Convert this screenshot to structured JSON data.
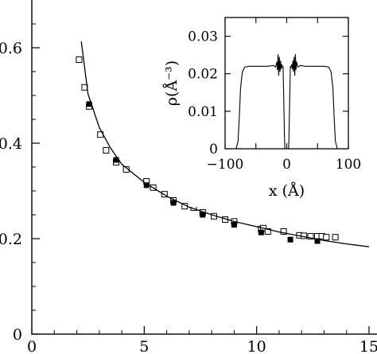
{
  "chart_data": [
    {
      "type": "scatter",
      "title": "",
      "xlabel": "",
      "ylabel": "",
      "xlim": [
        0,
        15
      ],
      "ylim": [
        0,
        0.7
      ],
      "x_ticks": [
        {
          "value": 0,
          "label": "0"
        },
        {
          "value": 5,
          "label": "5"
        },
        {
          "value": 10,
          "label": "10"
        },
        {
          "value": 15,
          "label": "15"
        }
      ],
      "y_ticks": [
        {
          "value": 0,
          "label": "0"
        },
        {
          "value": 0.2,
          "label": "0.2"
        },
        {
          "value": 0.4,
          "label": "0.4"
        },
        {
          "value": 0.6,
          "label": "0.6"
        }
      ],
      "series": [
        {
          "marker": "open-square",
          "x": [
            2.1,
            2.35,
            2.55,
            3.05,
            3.3,
            3.75,
            4.2,
            5.1,
            5.4,
            5.9,
            6.3,
            6.8,
            7.2,
            7.6,
            8.1,
            8.6,
            9.0,
            10.2,
            10.3,
            10.5,
            11.2,
            11.9,
            12.1,
            12.4,
            12.7,
            12.9,
            13.1,
            13.5
          ],
          "y": [
            0.575,
            0.517,
            0.477,
            0.418,
            0.385,
            0.36,
            0.345,
            0.32,
            0.307,
            0.293,
            0.28,
            0.268,
            0.265,
            0.255,
            0.247,
            0.24,
            0.236,
            0.22,
            0.222,
            0.215,
            0.215,
            0.207,
            0.206,
            0.205,
            0.205,
            0.205,
            0.203,
            0.203
          ]
        },
        {
          "marker": "filled-square",
          "x": [
            2.55,
            3.75,
            5.1,
            6.3,
            7.6,
            9.0,
            10.2,
            11.5,
            12.7
          ],
          "y": [
            0.482,
            0.365,
            0.312,
            0.275,
            0.25,
            0.229,
            0.213,
            0.198,
            0.195
          ]
        },
        {
          "marker": "line",
          "x": [
            2.2,
            2.5,
            3.0,
            3.5,
            4.0,
            5.0,
            6.0,
            7.0,
            8.0,
            9.0,
            10.0,
            11.0,
            12.0,
            13.0,
            14.0,
            15.0
          ],
          "y": [
            0.613,
            0.503,
            0.433,
            0.39,
            0.356,
            0.318,
            0.289,
            0.266,
            0.25,
            0.236,
            0.225,
            0.214,
            0.205,
            0.196,
            0.189,
            0.183
          ]
        }
      ]
    },
    {
      "type": "line",
      "title": "",
      "xlabel": "x (Å)",
      "ylabel": "ρ(Å⁻³)",
      "xlim": [
        -100,
        100
      ],
      "ylim": [
        0,
        0.035
      ],
      "x_ticks": [
        {
          "value": -100,
          "label": "−100"
        },
        {
          "value": -50,
          "label": ""
        },
        {
          "value": 0,
          "label": "0"
        },
        {
          "value": 50,
          "label": ""
        },
        {
          "value": 100,
          "label": "100"
        }
      ],
      "y_ticks": [
        {
          "value": 0,
          "label": "0"
        },
        {
          "value": 0.01,
          "label": "0.01"
        },
        {
          "value": 0.02,
          "label": "0.02"
        },
        {
          "value": 0.03,
          "label": "0.03"
        }
      ],
      "series": [
        {
          "x": [
            -90,
            -82,
            -79,
            -77,
            -75,
            -72,
            -68,
            -60,
            -30,
            -22,
            -18,
            -16,
            -15,
            -14,
            -13,
            -12,
            -11,
            -10,
            -9,
            -8,
            -7,
            -6,
            -5,
            -4,
            -3.5,
            -3,
            -2.6,
            2.6,
            3,
            3.5,
            4,
            5,
            6,
            7,
            8,
            9,
            10,
            11,
            12,
            13,
            14,
            15,
            16,
            18,
            22,
            30,
            60,
            68,
            72,
            75,
            77,
            79,
            82,
            90
          ],
          "y": [
            0,
            0,
            0.002,
            0.008,
            0.016,
            0.0205,
            0.0218,
            0.022,
            0.022,
            0.0222,
            0.0218,
            0.0232,
            0.021,
            0.0252,
            0.0195,
            0.0245,
            0.0205,
            0.0235,
            0.0212,
            0.0225,
            0.0218,
            0.0219,
            0.015,
            0.006,
            0.002,
            0,
            0,
            0,
            0,
            0.002,
            0.006,
            0.015,
            0.0219,
            0.0218,
            0.0225,
            0.0212,
            0.0235,
            0.0205,
            0.0245,
            0.0195,
            0.0252,
            0.021,
            0.0232,
            0.0218,
            0.0222,
            0.022,
            0.022,
            0.0218,
            0.0205,
            0.016,
            0.008,
            0.002,
            0,
            0
          ]
        }
      ]
    }
  ]
}
